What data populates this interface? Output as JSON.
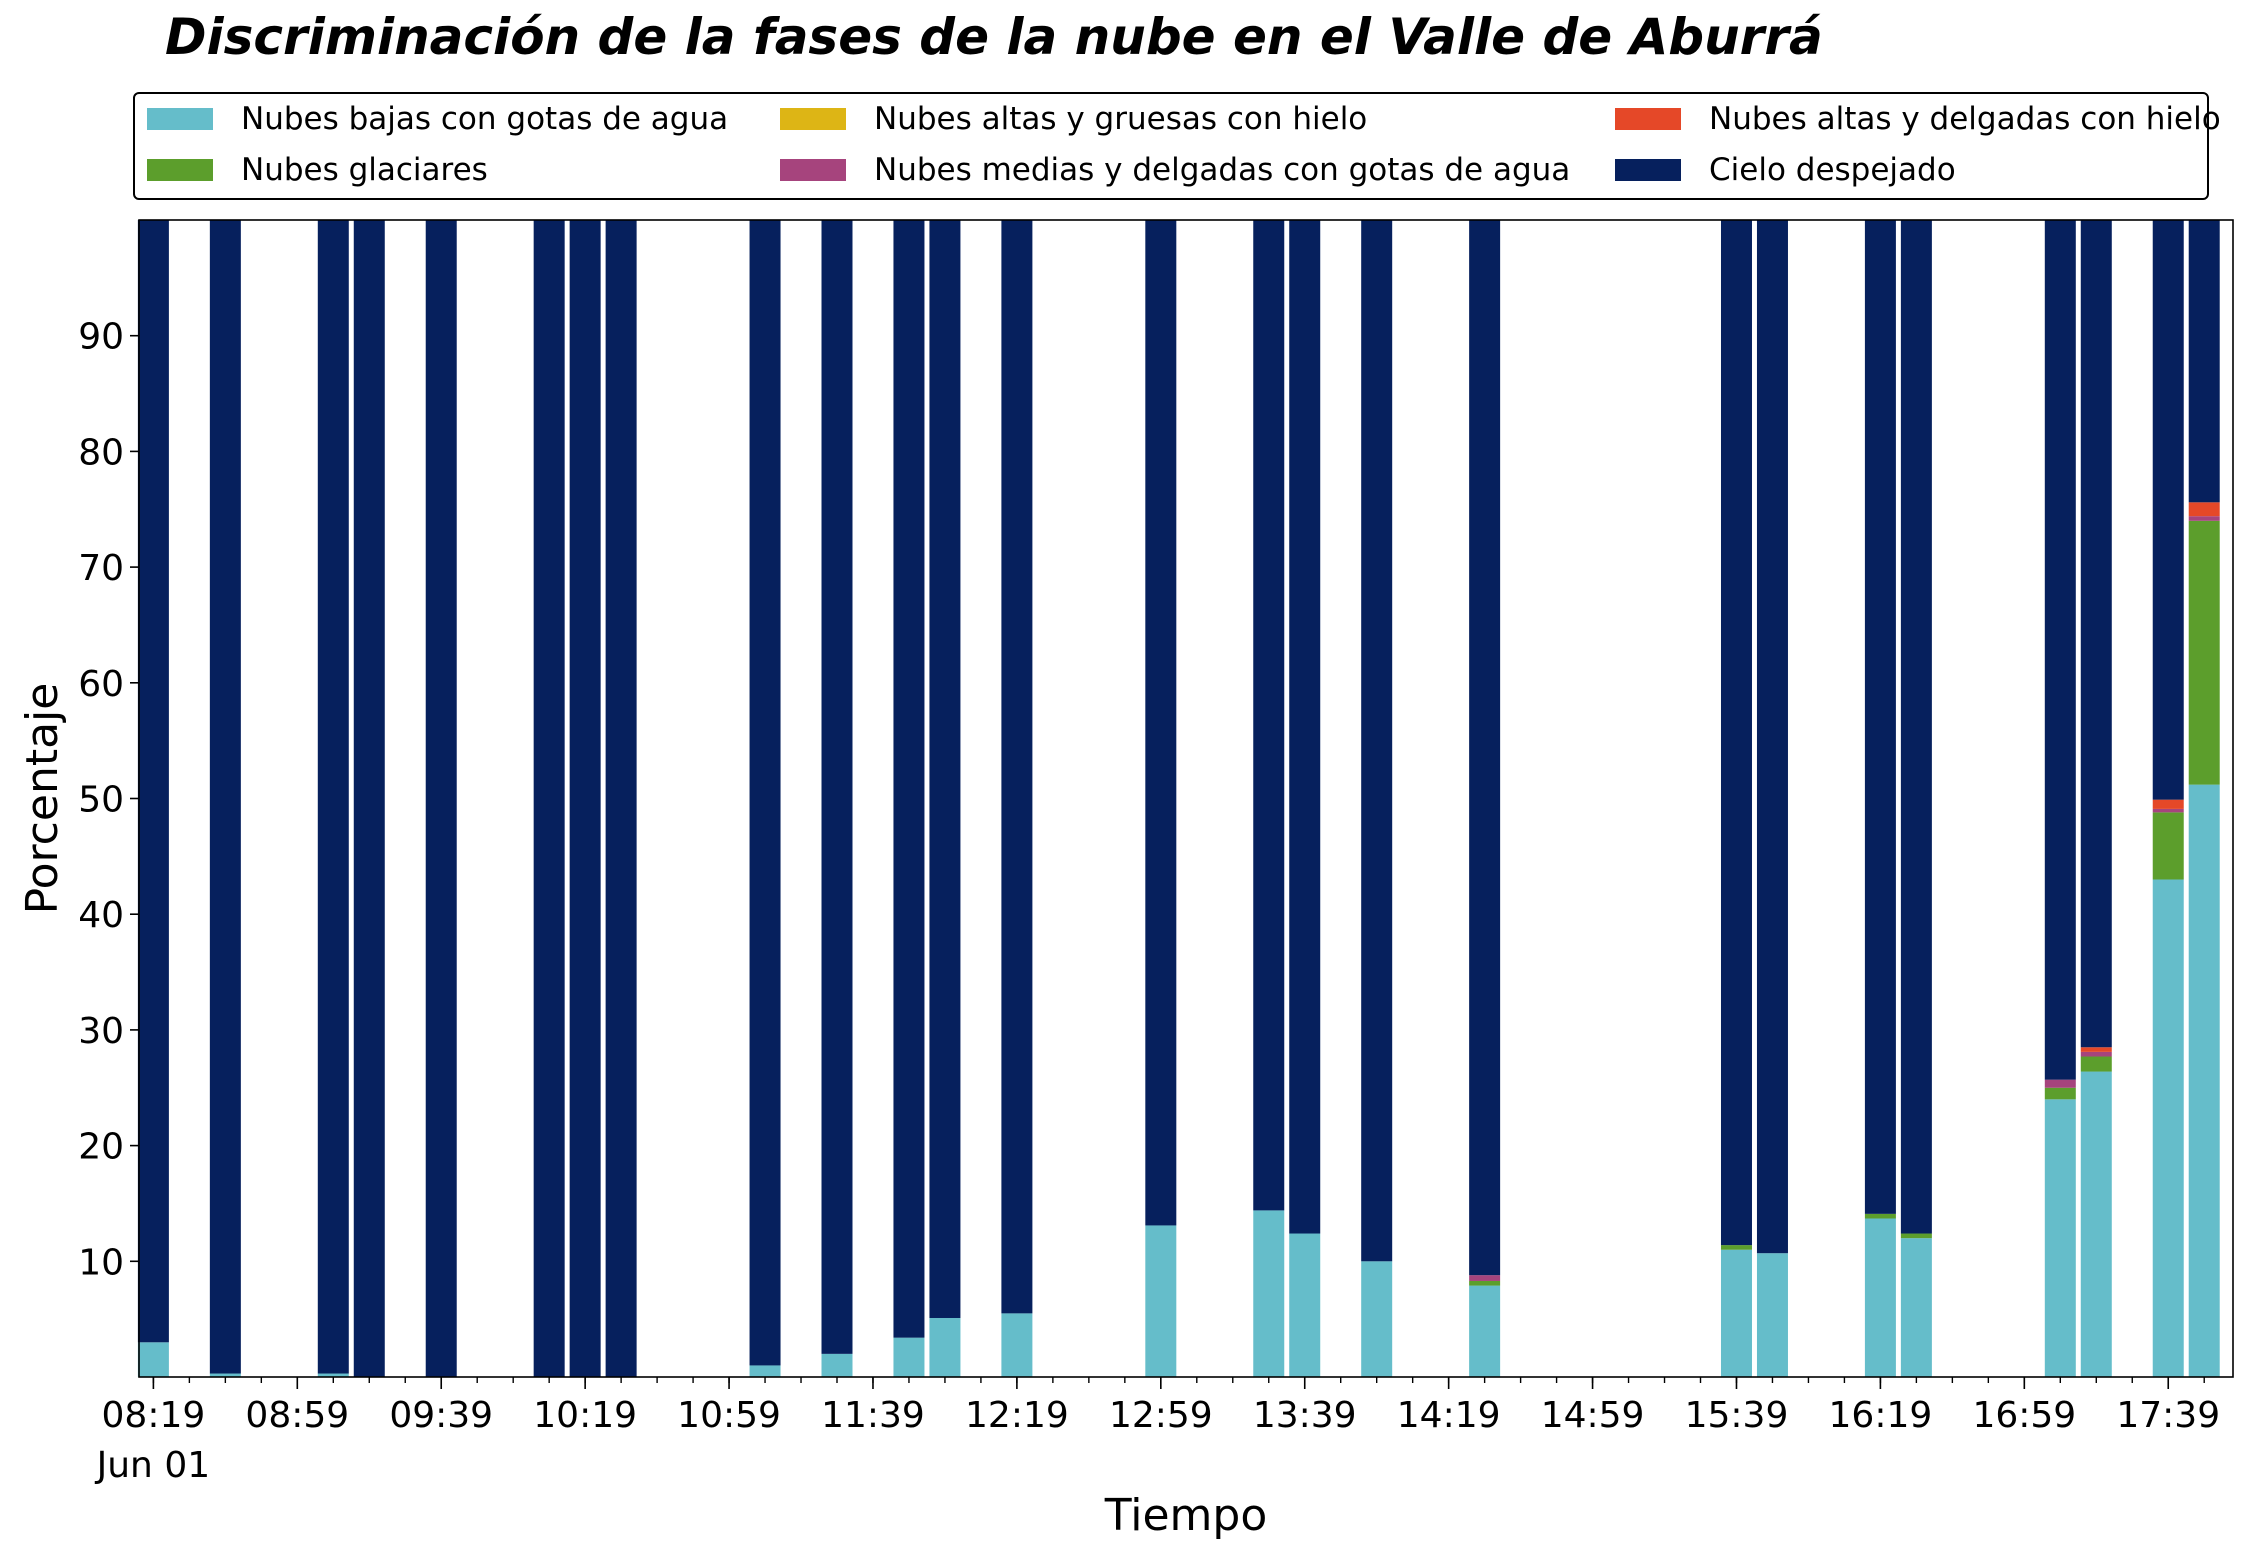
{
  "chart_data": {
    "type": "bar",
    "stacked": true,
    "title": "Discriminación de la fases de la nube en el Valle de Aburrá",
    "xlabel": "Tiempo",
    "ylabel": "Porcentaje",
    "ylim": [
      0,
      100
    ],
    "yticks": [
      10,
      20,
      30,
      40,
      50,
      60,
      70,
      80,
      90
    ],
    "xlim": [
      "2023-06-01 08:15",
      "2023-06-01 17:57"
    ],
    "xticks": [
      {
        "time": "08:19",
        "label": "08:19"
      },
      {
        "time": "08:59",
        "label": "08:59"
      },
      {
        "time": "09:39",
        "label": "09:39"
      },
      {
        "time": "10:19",
        "label": "10:19"
      },
      {
        "time": "10:59",
        "label": "10:59"
      },
      {
        "time": "11:39",
        "label": "11:39"
      },
      {
        "time": "12:19",
        "label": "12:19"
      },
      {
        "time": "12:59",
        "label": "12:59"
      },
      {
        "time": "13:39",
        "label": "13:39"
      },
      {
        "time": "14:19",
        "label": "14:19"
      },
      {
        "time": "14:59",
        "label": "14:59"
      },
      {
        "time": "15:39",
        "label": "15:39"
      },
      {
        "time": "16:19",
        "label": "16:19"
      },
      {
        "time": "16:59",
        "label": "16:59"
      },
      {
        "time": "17:39",
        "label": "17:39"
      }
    ],
    "date_label": "Jun 01",
    "legend_position": "top",
    "grid": false,
    "x": [
      "08:19",
      "08:39",
      "09:09",
      "09:19",
      "09:39",
      "10:09",
      "10:19",
      "10:29",
      "11:09",
      "11:29",
      "11:49",
      "11:59",
      "12:19",
      "12:59",
      "13:29",
      "13:39",
      "13:59",
      "14:29",
      "15:39",
      "15:49",
      "16:19",
      "16:29",
      "17:09",
      "17:19",
      "17:39",
      "17:49"
    ],
    "series": [
      {
        "name": "Nubes bajas con gotas de agua",
        "color": "#65BDCA",
        "values": [
          3.0,
          0.3,
          0.3,
          0,
          0,
          0,
          0,
          0,
          1.0,
          2.0,
          3.4,
          5.1,
          5.5,
          13.1,
          14.4,
          12.4,
          10.0,
          7.9,
          11.0,
          10.7,
          13.7,
          12.0,
          24.0,
          26.4,
          43.0,
          51.2
        ]
      },
      {
        "name": "Nubes glaciares",
        "color": "#5C9E2C",
        "values": [
          0,
          0,
          0,
          0,
          0,
          0,
          0,
          0,
          0,
          0,
          0,
          0,
          0,
          0,
          0,
          0,
          0,
          0.4,
          0.4,
          0,
          0.4,
          0.4,
          1.0,
          1.3,
          5.8,
          22.8
        ]
      },
      {
        "name": "Nubes altas y gruesas con hielo",
        "color": "#DDB515",
        "values": [
          0,
          0,
          0,
          0,
          0,
          0,
          0,
          0,
          0,
          0,
          0,
          0,
          0,
          0,
          0,
          0,
          0,
          0,
          0,
          0,
          0,
          0,
          0,
          0,
          0,
          0
        ]
      },
      {
        "name": "Nubes medias y delgadas con gotas de agua",
        "color": "#A6447D",
        "values": [
          0,
          0,
          0,
          0,
          0,
          0,
          0,
          0,
          0,
          0,
          0,
          0,
          0,
          0,
          0,
          0,
          0,
          0.5,
          0,
          0,
          0,
          0,
          0.7,
          0.4,
          0.3,
          0.4
        ]
      },
      {
        "name": "Nubes altas y delgadas con hielo",
        "color": "#E54828",
        "values": [
          0,
          0,
          0,
          0,
          0,
          0,
          0,
          0,
          0,
          0,
          0,
          0,
          0,
          0,
          0,
          0,
          0,
          0,
          0,
          0,
          0,
          0,
          0,
          0.4,
          0.8,
          1.2
        ]
      },
      {
        "name": "Cielo despejado",
        "color": "#06205D",
        "values": [
          97.0,
          99.7,
          99.7,
          100,
          100,
          100,
          100,
          100,
          99.0,
          98.0,
          96.6,
          94.9,
          94.5,
          86.9,
          85.6,
          87.6,
          90.0,
          91.2,
          88.6,
          89.3,
          85.9,
          87.6,
          74.3,
          71.5,
          50.1,
          24.4
        ]
      }
    ]
  }
}
